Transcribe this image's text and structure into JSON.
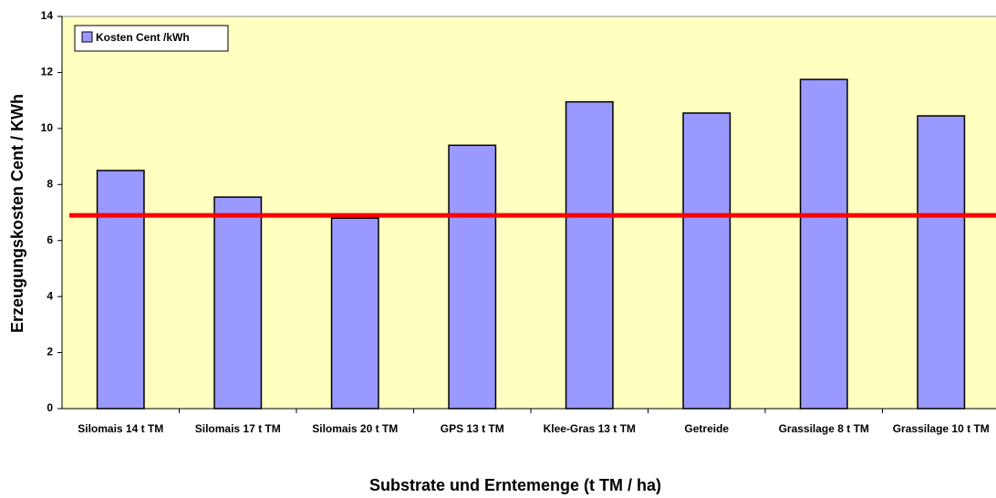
{
  "chart_data": {
    "type": "bar",
    "x_label": "Substrate und Erntemenge (t TM / ha)",
    "y_label": "Erzeugungskosten Cent / KWh",
    "categories": [
      "Silomais 14 t TM",
      "Silomais 17 t TM",
      "Silomais 20 t TM",
      "GPS 13 t TM",
      "Klee-Gras 13 t TM",
      "Getreide",
      "Grassilage 8 t TM",
      "Grassilage 10 t TM"
    ],
    "series": [
      {
        "name": "Kosten Cent /kWh",
        "color": "#9999ff",
        "values": [
          8.5,
          7.55,
          6.8,
          9.4,
          10.95,
          10.55,
          11.75,
          10.45
        ]
      }
    ],
    "hline": {
      "value": 6.9,
      "color": "#ff0000"
    },
    "ylim": [
      0,
      14
    ],
    "yticks": [
      0,
      2,
      4,
      6,
      8,
      10,
      12,
      14
    ],
    "plot_background": "#ffffc0",
    "legend": "top-left"
  }
}
